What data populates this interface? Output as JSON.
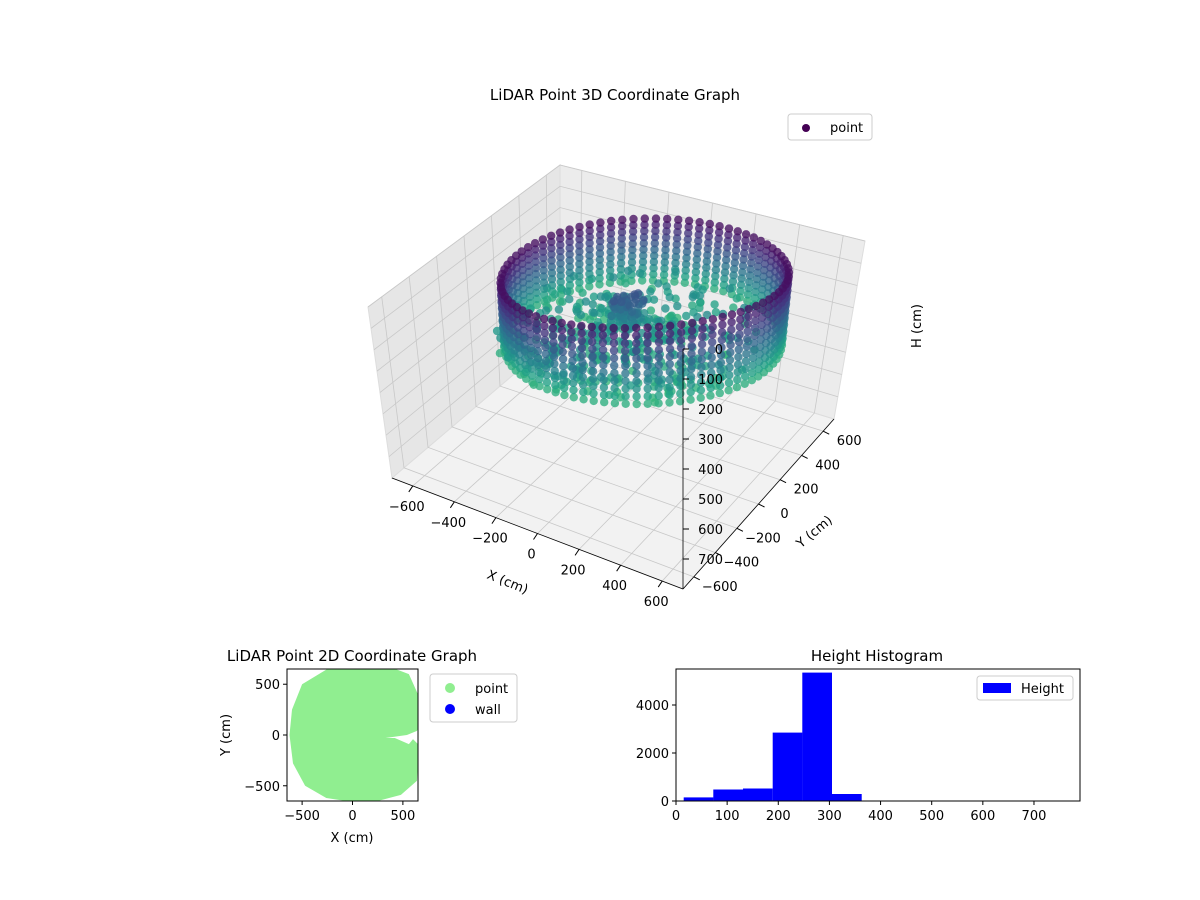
{
  "chart_data": [
    {
      "type": "scatter",
      "projection": "3d",
      "title": "LiDAR Point 3D Coordinate Graph",
      "xlabel": "X (cm)",
      "ylabel": "Y (cm)",
      "zlabel": "H (cm)",
      "xlim": [
        -700,
        700
      ],
      "ylim": [
        -700,
        700
      ],
      "zlim": [
        0,
        800
      ],
      "z_inverted": true,
      "xticks": [
        -600,
        -400,
        -200,
        0,
        200,
        400,
        600
      ],
      "yticks": [
        -600,
        -400,
        -200,
        0,
        200,
        400,
        600
      ],
      "zticks": [
        0,
        100,
        200,
        300,
        400,
        500,
        600,
        700
      ],
      "grid": true,
      "colormap": "viridis",
      "legend": {
        "placement": "top-right",
        "entries": [
          {
            "label": "point",
            "color": "#440154"
          }
        ]
      },
      "series": [
        {
          "name": "point",
          "components": [
            {
              "kind": "ring",
              "cx": 120,
              "cy": 0,
              "radius": 560,
              "z_top": 20,
              "z_bottom": 300
            },
            {
              "kind": "floor-spiral",
              "z_range": [
                240,
                320
              ]
            },
            {
              "kind": "cluster",
              "x": 0,
              "y": 0,
              "z_range": [
                120,
                250
              ]
            }
          ]
        }
      ]
    },
    {
      "type": "scatter",
      "title": "LiDAR Point 2D Coordinate Graph",
      "xlabel": "X (cm)",
      "ylabel": "Y (cm)",
      "xlim": [
        -650,
        650
      ],
      "ylim": [
        -650,
        650
      ],
      "xticks": [
        -500,
        0,
        500
      ],
      "yticks": [
        -500,
        0,
        500
      ],
      "legend": {
        "placement": "outside-right",
        "entries": [
          {
            "label": "point",
            "color": "#90ee90"
          },
          {
            "label": "wall",
            "color": "#0000ff"
          }
        ]
      },
      "series": [
        {
          "name": "point",
          "color": "#90ee90",
          "outline": [
            [
              -250,
              650
            ],
            [
              -500,
              500
            ],
            [
              -600,
              250
            ],
            [
              -625,
              0
            ],
            [
              -590,
              -280
            ],
            [
              -470,
              -500
            ],
            [
              -260,
              -620
            ],
            [
              0,
              -660
            ],
            [
              250,
              -650
            ],
            [
              480,
              -590
            ],
            [
              640,
              -450
            ],
            [
              660,
              -100
            ],
            [
              600,
              -40
            ],
            [
              560,
              -90
            ],
            [
              420,
              -30
            ],
            [
              300,
              -30
            ],
            [
              250,
              -40
            ],
            [
              540,
              0
            ],
            [
              640,
              40
            ],
            [
              660,
              90
            ],
            [
              650,
              400
            ],
            [
              560,
              600
            ],
            [
              400,
              660
            ],
            [
              100,
              670
            ]
          ]
        }
      ]
    },
    {
      "type": "bar",
      "subtype": "histogram",
      "title": "Height Histogram",
      "xlim": [
        0,
        790
      ],
      "ylim": [
        0,
        5500
      ],
      "xticks": [
        0,
        100,
        200,
        300,
        400,
        500,
        600,
        700
      ],
      "yticks": [
        0,
        2000,
        4000
      ],
      "color": "#0000ff",
      "legend": {
        "placement": "top-right",
        "entries": [
          {
            "label": "Height",
            "color": "#0000ff"
          }
        ]
      },
      "bins": [
        {
          "x0": 15,
          "x1": 73,
          "value": 150
        },
        {
          "x0": 73,
          "x1": 131,
          "value": 480
        },
        {
          "x0": 131,
          "x1": 189,
          "value": 520
        },
        {
          "x0": 189,
          "x1": 247,
          "value": 2850
        },
        {
          "x0": 247,
          "x1": 305,
          "value": 5350
        },
        {
          "x0": 305,
          "x1": 363,
          "value": 290
        },
        {
          "x0": 363,
          "x1": 421,
          "value": 0
        },
        {
          "x0": 421,
          "x1": 479,
          "value": 0
        },
        {
          "x0": 479,
          "x1": 537,
          "value": 0
        },
        {
          "x0": 537,
          "x1": 595,
          "value": 0
        },
        {
          "x0": 595,
          "x1": 653,
          "value": 0
        },
        {
          "x0": 653,
          "x1": 711,
          "value": 0
        },
        {
          "x0": 711,
          "x1": 769,
          "value": 0
        }
      ]
    }
  ]
}
